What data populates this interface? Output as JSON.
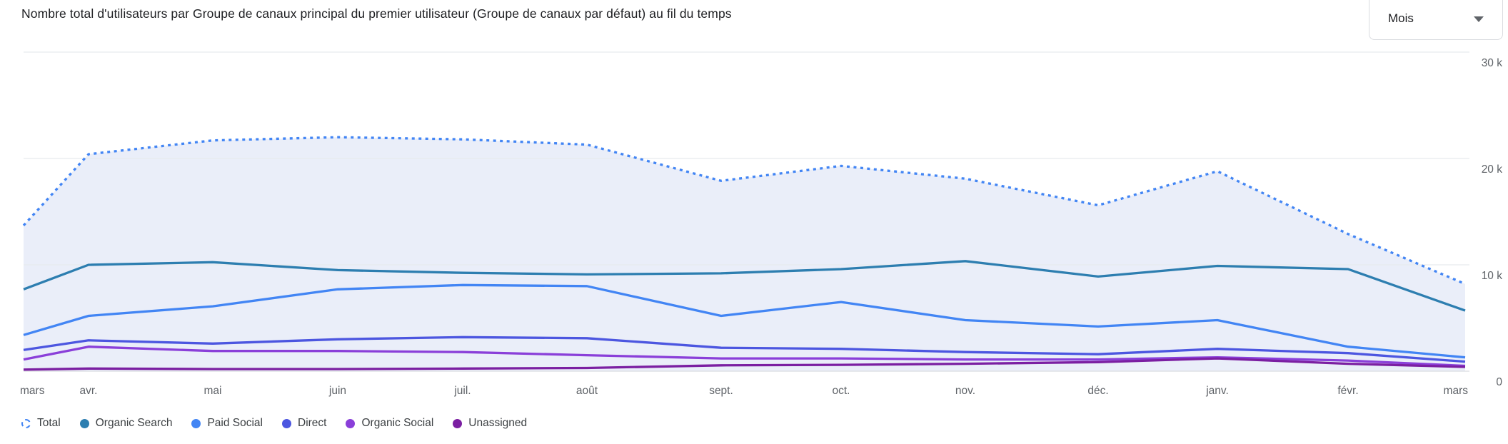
{
  "header": {
    "title": "Nombre total d'utilisateurs par Groupe de canaux principal du premier utilisateur (Groupe de canaux par défaut) au fil du temps"
  },
  "granularity_dropdown": {
    "value": "Mois"
  },
  "chart_data": {
    "type": "line",
    "x": [
      "mars",
      "avr.",
      "mai",
      "juin",
      "juil.",
      "août",
      "sept.",
      "oct.",
      "nov.",
      "déc.",
      "janv.",
      "févr.",
      "mars"
    ],
    "y_tick_labels": [
      "30 k",
      "20 k",
      "10 k",
      "0"
    ],
    "y_ticks": [
      30000,
      20000,
      10000,
      0
    ],
    "ylim": [
      0,
      30000
    ],
    "grid": "horizontal",
    "legend_position": "bottom",
    "colors": {
      "grid": "#e8eaed",
      "baseline": "#dadce0",
      "axis_text": "#5f6368",
      "total_fill": "#eaeef9"
    },
    "series": [
      {
        "name": "Total",
        "style": "dotted",
        "color": "#4285F4",
        "filled": true,
        "values": [
          13700,
          20400,
          21700,
          22000,
          21800,
          21300,
          17900,
          19300,
          18100,
          15600,
          18800,
          12900,
          8200
        ]
      },
      {
        "name": "Organic Search",
        "style": "solid",
        "color": "#2D7EB0",
        "filled": false,
        "values": [
          7700,
          10000,
          10250,
          9500,
          9250,
          9100,
          9200,
          9600,
          10350,
          8900,
          9900,
          9600,
          5700
        ]
      },
      {
        "name": "Paid Social",
        "style": "solid",
        "color": "#4285F4",
        "filled": false,
        "values": [
          3400,
          5200,
          6100,
          7700,
          8100,
          8000,
          5200,
          6500,
          4800,
          4200,
          4800,
          2300,
          1300
        ]
      },
      {
        "name": "Direct",
        "style": "solid",
        "color": "#4C56E0",
        "filled": false,
        "values": [
          2000,
          2900,
          2600,
          3000,
          3200,
          3100,
          2200,
          2100,
          1800,
          1600,
          2100,
          1700,
          900
        ]
      },
      {
        "name": "Organic Social",
        "style": "solid",
        "color": "#8A3FD9",
        "filled": false,
        "values": [
          1100,
          2300,
          1900,
          1900,
          1800,
          1500,
          1200,
          1200,
          1100,
          1100,
          1300,
          1000,
          500
        ]
      },
      {
        "name": "Unassigned",
        "style": "solid",
        "color": "#7B1FA2",
        "filled": false,
        "values": [
          150,
          250,
          200,
          200,
          250,
          300,
          550,
          600,
          700,
          850,
          1200,
          700,
          400
        ]
      }
    ]
  }
}
